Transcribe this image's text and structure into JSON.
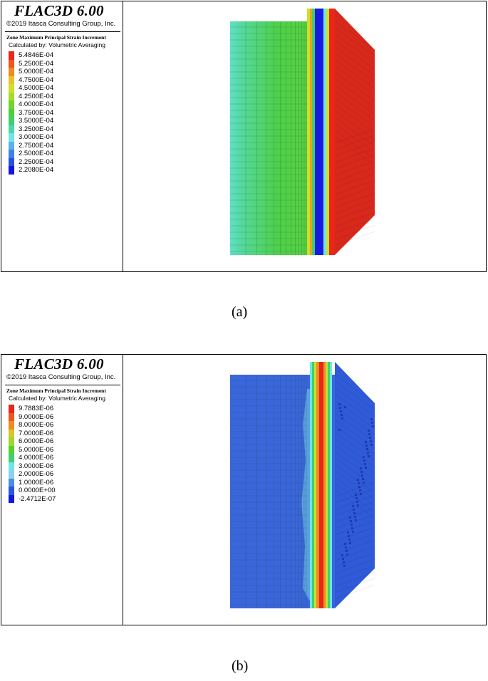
{
  "panels": [
    {
      "id": "a",
      "title": "FLAC3D 6.00",
      "copyright": "©2019 Itasca Consulting Group, Inc.",
      "legend_heading": "Zone Maximum Principal Strain Increment",
      "legend_subheading": "Calculated by: Volumetric Averaging",
      "legend": [
        {
          "label": "5.4846E-04",
          "color": "#e8261a"
        },
        {
          "label": "5.2500E-04",
          "color": "#f0561c"
        },
        {
          "label": "5.0000E-04",
          "color": "#f08a22"
        },
        {
          "label": "4.7500E-04",
          "color": "#e7c32a"
        },
        {
          "label": "4.5000E-04",
          "color": "#cfe02c"
        },
        {
          "label": "4.2500E-04",
          "color": "#a5dc2c"
        },
        {
          "label": "4.0000E-04",
          "color": "#6fd42e"
        },
        {
          "label": "3.7500E-04",
          "color": "#4ccf37"
        },
        {
          "label": "3.5000E-04",
          "color": "#3ed070"
        },
        {
          "label": "3.2500E-04",
          "color": "#48d8b0"
        },
        {
          "label": "3.0000E-04",
          "color": "#6fe6e4"
        },
        {
          "label": "2.7500E-04",
          "color": "#55b2ee"
        },
        {
          "label": "2.5000E-04",
          "color": "#3f82e6"
        },
        {
          "label": "2.2500E-04",
          "color": "#2a4fe0"
        },
        {
          "label": "2.2080E-04",
          "color": "#1414e6"
        }
      ],
      "caption": "(a)"
    },
    {
      "id": "b",
      "title": "FLAC3D 6.00",
      "copyright": "©2019 Itasca Consulting Group, Inc.",
      "legend_heading": "Zone Maximum Principal Strain Increment",
      "legend_subheading": "Calculated by: Volumetric Averaging",
      "legend": [
        {
          "label": "9.7883E-06",
          "color": "#e8261a"
        },
        {
          "label": "9.0000E-06",
          "color": "#f0561c"
        },
        {
          "label": "8.0000E-06",
          "color": "#f08a22"
        },
        {
          "label": "7.0000E-06",
          "color": "#d6c82a"
        },
        {
          "label": "6.0000E-06",
          "color": "#9cd92c"
        },
        {
          "label": "5.0000E-06",
          "color": "#55d02f"
        },
        {
          "label": "4.0000E-06",
          "color": "#3ed070"
        },
        {
          "label": "3.0000E-06",
          "color": "#6fe6e4"
        },
        {
          "label": "2.0000E-06",
          "color": "#8fd0ee"
        },
        {
          "label": "1.0000E-06",
          "color": "#4a8ee6"
        },
        {
          "label": "0.0000E+00",
          "color": "#2a55de"
        },
        {
          "label": "-2.4712E-07",
          "color": "#1414e6"
        }
      ],
      "caption": "(b)"
    }
  ]
}
